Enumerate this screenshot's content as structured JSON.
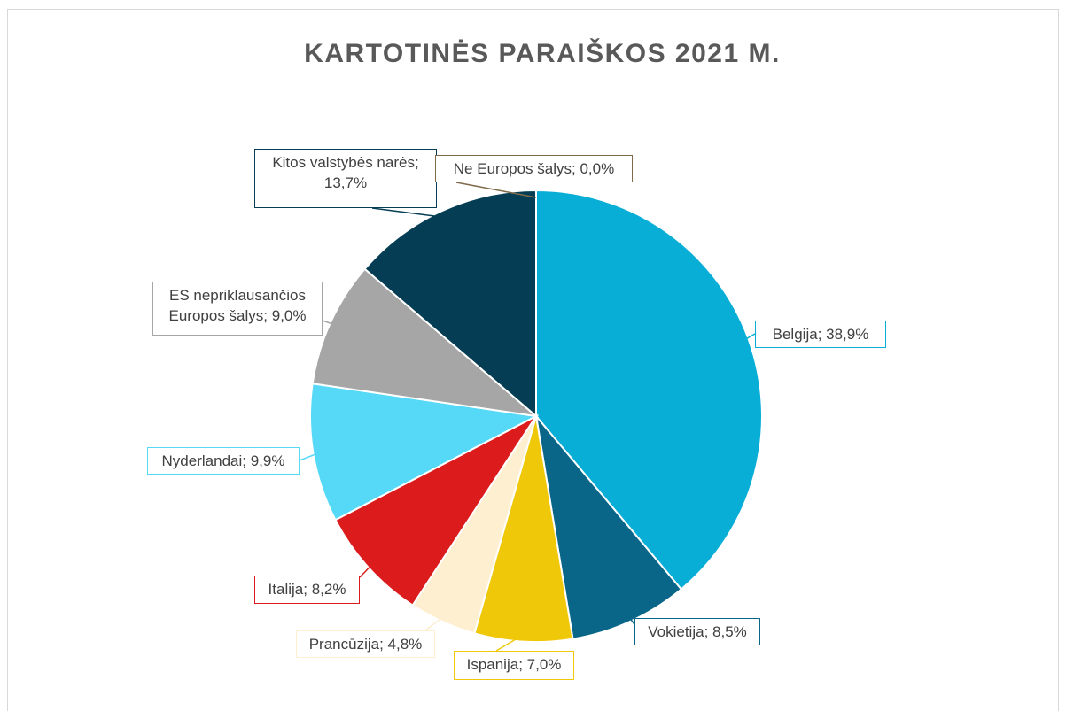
{
  "chart_data": {
    "type": "pie",
    "title": "KARTOTINĖS PARAIŠKOS 2021 M.",
    "categories": [
      "Belgija",
      "Vokietija",
      "Ispanija",
      "Prancūzija",
      "Italija",
      "Nyderlandai",
      "ES nepriklausančios Europos šalys",
      "Kitos valstybės narės",
      "Ne Europos šalys"
    ],
    "values": [
      38.9,
      8.5,
      7.0,
      4.8,
      8.2,
      9.9,
      9.0,
      13.7,
      0.0
    ],
    "value_labels": [
      "38,9%",
      "8,5%",
      "7,0%",
      "4,8%",
      "8,2%",
      "9,9%",
      "9,0%",
      "13,7%",
      "0,0%"
    ],
    "label_separator": "; ",
    "colors": [
      "#08aed6",
      "#0a6688",
      "#f0c80a",
      "#fdefd0",
      "#dc1c1c",
      "#55d9f7",
      "#a6a6a6",
      "#053e54",
      "#7f6a4a"
    ]
  }
}
